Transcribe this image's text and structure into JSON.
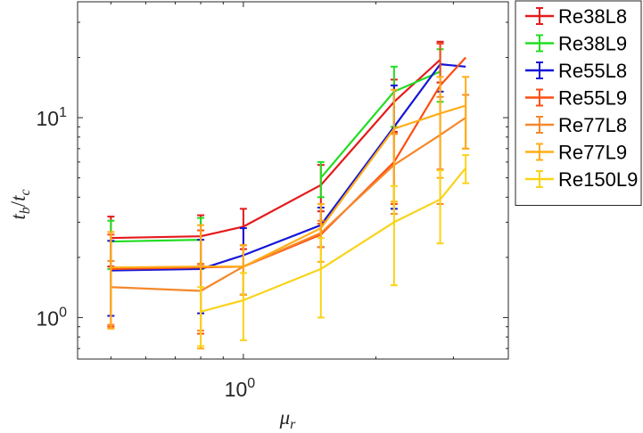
{
  "chart_data": {
    "type": "line",
    "title": "",
    "xlabel": "μ",
    "xlabel_sub": "r",
    "ylabel_num": "t",
    "ylabel_num_sub": "b",
    "ylabel_slash": "/",
    "ylabel_den": "t",
    "ylabel_den_sub": "c",
    "x_scale": "log",
    "y_scale": "log",
    "xlim": [
      0.42,
      4.0
    ],
    "ylim": [
      0.62,
      38
    ],
    "grid": false,
    "legend_position": "top-right outside",
    "x_ticks": [
      {
        "value": 1,
        "base": "10",
        "exp": "0"
      }
    ],
    "y_ticks": [
      {
        "value": 1,
        "base": "10",
        "exp": "0"
      },
      {
        "value": 10,
        "base": "10",
        "exp": "1"
      }
    ],
    "series": [
      {
        "name": "Re38L8",
        "color": "#e41a1c",
        "x": [
          0.5,
          0.8,
          1.0,
          1.5,
          2.2,
          2.8
        ],
        "y": [
          2.5,
          2.55,
          2.85,
          4.6,
          12.0,
          19.5
        ],
        "err": [
          0.7,
          0.7,
          0.65,
          1.2,
          3.5,
          4.5
        ]
      },
      {
        "name": "Re38L9",
        "color": "#22dd22",
        "x": [
          0.5,
          0.8,
          1.0,
          1.5,
          2.2,
          2.8
        ],
        "y": [
          2.4,
          2.45,
          null,
          5.0,
          13.5,
          17.0
        ],
        "err": [
          0.65,
          0.7,
          null,
          1.0,
          4.5,
          5.0
        ]
      },
      {
        "name": "Re55L8",
        "color": "#1515d8",
        "x": [
          0.5,
          0.8,
          1.0,
          1.5,
          2.2,
          2.8,
          3.2
        ],
        "y": [
          1.72,
          1.75,
          2.05,
          2.9,
          9.0,
          18.5,
          18.0
        ],
        "err": [
          0.7,
          0.7,
          0.75,
          0.65,
          5.5,
          5.0,
          null
        ]
      },
      {
        "name": "Re55L9",
        "color": "#ff4e11",
        "x": [
          0.5,
          0.8,
          1.0,
          1.5,
          2.2,
          2.8,
          3.2
        ],
        "y": [
          1.75,
          1.78,
          1.8,
          2.6,
          6.0,
          14.5,
          20.0
        ],
        "err": [
          0.85,
          0.95,
          0.5,
          0.35,
          2.3,
          9.0,
          null
        ]
      },
      {
        "name": "Re77L8",
        "color": "#f5882a",
        "x": [
          0.5,
          0.8,
          1.0,
          1.5,
          2.2,
          2.8,
          3.2
        ],
        "y": [
          1.42,
          1.36,
          1.8,
          2.65,
          5.8,
          8.2,
          10.0
        ],
        "err": [
          0.5,
          0.5,
          0.5,
          0.4,
          2.5,
          4.5,
          3.0
        ]
      },
      {
        "name": "Re77L9",
        "color": "#ffad17",
        "x": [
          0.5,
          0.8,
          1.0,
          1.5,
          2.2,
          2.8,
          3.2
        ],
        "y": [
          1.78,
          1.8,
          1.8,
          2.8,
          8.8,
          10.5,
          11.5
        ],
        "err": [
          0.9,
          1.1,
          0.5,
          0.9,
          5.0,
          5.5,
          4.5
        ]
      },
      {
        "name": "Re150L9",
        "color": "#fad319",
        "x": [
          0.8,
          1.0,
          1.5,
          2.2,
          2.8,
          3.2
        ],
        "y": [
          1.07,
          1.22,
          1.75,
          3.0,
          3.9,
          5.6
        ],
        "err": [
          0.35,
          0.45,
          0.75,
          1.55,
          1.55,
          0.9
        ]
      }
    ]
  }
}
